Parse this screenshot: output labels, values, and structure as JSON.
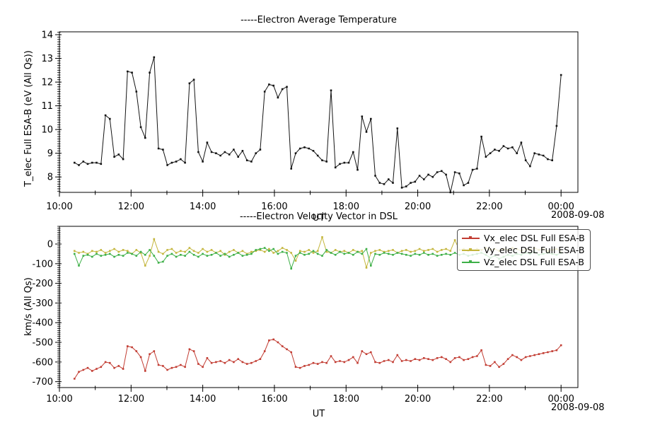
{
  "date_label": "2008-09-08",
  "colors": {
    "axis": "#000000",
    "temperature": "#141414",
    "vx": "#c23d33",
    "vy": "#c4b63d",
    "vz": "#3eb048"
  },
  "chart_data": [
    {
      "type": "line",
      "title": "-----Electron Average Temperature",
      "xlabel": "UT",
      "ylabel": "T_elec Full ESA-B (eV (All Qs))",
      "date": "2008-09-08",
      "xlim_hours": [
        10.0,
        24.47
      ],
      "ylim": [
        7.35,
        14.12
      ],
      "yticks": [
        8,
        9,
        10,
        11,
        12,
        13,
        14
      ],
      "y_minor_step": 0.1,
      "xticks_hours": [
        10,
        12,
        14,
        16,
        18,
        20,
        22,
        24
      ],
      "xtick_labels": [
        "10:00",
        "12:00",
        "14:00",
        "16:00",
        "18:00",
        "20:00",
        "22:00",
        "00:00"
      ],
      "x_minor_hours": [
        11,
        13,
        15,
        17,
        19,
        21,
        23
      ],
      "grid": false,
      "legend": null,
      "x_start_hour": 10.42,
      "x_end_hour": 24.0,
      "series": [
        {
          "name": "T_elec Full ESA-B",
          "color": "#141414",
          "marker": "square",
          "values": [
            8.6,
            8.5,
            8.65,
            8.55,
            8.6,
            8.6,
            8.55,
            10.6,
            10.45,
            8.85,
            8.95,
            8.75,
            12.45,
            12.4,
            11.6,
            10.1,
            9.65,
            12.4,
            13.05,
            9.2,
            9.15,
            8.5,
            8.6,
            8.65,
            8.75,
            8.6,
            11.95,
            12.1,
            9.05,
            8.65,
            9.45,
            9.05,
            9.0,
            8.9,
            9.05,
            8.95,
            9.15,
            8.85,
            9.1,
            8.7,
            8.65,
            9.0,
            9.15,
            11.6,
            11.9,
            11.85,
            11.35,
            11.7,
            11.8,
            8.35,
            9.0,
            9.2,
            9.25,
            9.2,
            9.1,
            8.9,
            8.7,
            8.65,
            11.65,
            8.4,
            8.55,
            8.6,
            8.6,
            9.05,
            8.3,
            10.55,
            9.9,
            10.45,
            8.05,
            7.75,
            7.7,
            7.9,
            7.75,
            10.05,
            7.55,
            7.6,
            7.75,
            7.8,
            8.05,
            7.9,
            8.1,
            8.0,
            8.2,
            8.25,
            8.1,
            7.35,
            8.2,
            8.15,
            7.65,
            7.75,
            8.3,
            8.35,
            9.7,
            8.85,
            9.0,
            9.15,
            9.1,
            9.3,
            9.2,
            9.25,
            9.0,
            9.45,
            8.7,
            8.45,
            9.0,
            8.95,
            8.9,
            8.75,
            8.7,
            10.15,
            12.3
          ]
        }
      ]
    },
    {
      "type": "line",
      "title": "-----Electron Velocity Vector in DSL",
      "xlabel": "UT",
      "ylabel": "km/s (All Qs)",
      "date": "2008-09-08",
      "xlim_hours": [
        10.0,
        24.47
      ],
      "ylim": [
        -730,
        90
      ],
      "yticks": [
        0,
        -100,
        -200,
        -300,
        -400,
        -500,
        -600,
        -700
      ],
      "y_minor_step": 10,
      "xticks_hours": [
        10,
        12,
        14,
        16,
        18,
        20,
        22,
        24
      ],
      "xtick_labels": [
        "10:00",
        "12:00",
        "14:00",
        "16:00",
        "18:00",
        "20:00",
        "22:00",
        "00:00"
      ],
      "x_minor_hours": [
        11,
        13,
        15,
        17,
        19,
        21,
        23
      ],
      "grid": false,
      "legend": {
        "position": "upper-right"
      },
      "x_start_hour": 10.42,
      "x_end_hour": 24.0,
      "series": [
        {
          "name": "Vx_elec DSL Full ESA-B",
          "color": "#c23d33",
          "marker": "square",
          "values": [
            -685,
            -650,
            -640,
            -630,
            -645,
            -635,
            -625,
            -600,
            -605,
            -630,
            -620,
            -635,
            -520,
            -525,
            -545,
            -575,
            -645,
            -560,
            -545,
            -615,
            -620,
            -640,
            -630,
            -625,
            -615,
            -625,
            -535,
            -545,
            -610,
            -625,
            -580,
            -605,
            -600,
            -595,
            -605,
            -590,
            -600,
            -585,
            -600,
            -610,
            -605,
            -595,
            -585,
            -545,
            -490,
            -485,
            -500,
            -520,
            -535,
            -550,
            -625,
            -630,
            -620,
            -615,
            -605,
            -610,
            -600,
            -605,
            -570,
            -600,
            -595,
            -600,
            -590,
            -575,
            -605,
            -545,
            -560,
            -550,
            -600,
            -605,
            -595,
            -590,
            -600,
            -565,
            -595,
            -590,
            -595,
            -585,
            -590,
            -580,
            -585,
            -590,
            -580,
            -575,
            -585,
            -600,
            -580,
            -575,
            -590,
            -585,
            -575,
            -570,
            -540,
            -615,
            -620,
            -600,
            -625,
            -610,
            -585,
            -565,
            -575,
            -590,
            -575,
            -570,
            -565,
            -560,
            -555,
            -550,
            -545,
            -540,
            -515
          ]
        },
        {
          "name": "Vy_elec DSL Full ESA-B",
          "color": "#c4b63d",
          "marker": "square",
          "values": [
            -35,
            -45,
            -40,
            -50,
            -35,
            -40,
            -30,
            -45,
            -35,
            -25,
            -40,
            -30,
            -35,
            -50,
            -30,
            -45,
            -110,
            -60,
            25,
            -40,
            -50,
            -30,
            -25,
            -45,
            -35,
            -40,
            -20,
            -35,
            -45,
            -25,
            -40,
            -30,
            -45,
            -35,
            -55,
            -40,
            -30,
            -45,
            -35,
            -50,
            -40,
            -35,
            -30,
            -40,
            -25,
            -45,
            -35,
            -20,
            -30,
            -45,
            -85,
            -35,
            -40,
            -30,
            -45,
            -35,
            35,
            -40,
            -45,
            -30,
            -40,
            -35,
            -45,
            -30,
            -40,
            -35,
            -120,
            -45,
            -35,
            -30,
            -40,
            -35,
            -30,
            -45,
            -35,
            -30,
            -40,
            -35,
            -25,
            -35,
            -30,
            -25,
            -40,
            -30,
            -25,
            -35,
            20,
            -30,
            -25,
            -35,
            -30,
            -25,
            -30,
            -20,
            -30,
            -25,
            -35,
            -25,
            -30,
            -20,
            -25,
            -35,
            -25,
            -30,
            -20,
            -30,
            -25,
            -35,
            -30,
            -25,
            -40
          ]
        },
        {
          "name": "Vz_elec DSL Full ESA-B",
          "color": "#3eb048",
          "marker": "square",
          "values": [
            -50,
            -110,
            -60,
            -55,
            -65,
            -50,
            -60,
            -55,
            -50,
            -65,
            -55,
            -60,
            -45,
            -50,
            -60,
            -40,
            -55,
            -30,
            -60,
            -95,
            -90,
            -60,
            -50,
            -65,
            -55,
            -60,
            -40,
            -55,
            -65,
            -50,
            -60,
            -55,
            -45,
            -60,
            -50,
            -65,
            -55,
            -45,
            -60,
            -55,
            -50,
            -30,
            -25,
            -20,
            -35,
            -25,
            -50,
            -40,
            -45,
            -125,
            -60,
            -45,
            -55,
            -50,
            -35,
            -50,
            -60,
            -30,
            -45,
            -55,
            -40,
            -50,
            -45,
            -55,
            -40,
            -50,
            -25,
            -110,
            -50,
            -55,
            -45,
            -50,
            -55,
            -45,
            -50,
            -55,
            -60,
            -50,
            -55,
            -45,
            -55,
            -50,
            -60,
            -55,
            -50,
            -55,
            -45,
            -55,
            -50,
            -60,
            -55,
            -50,
            -45,
            -55,
            -70,
            -60,
            -75,
            -65,
            -55,
            -60,
            -50,
            -55,
            -45,
            -50,
            -40,
            -55,
            -50,
            -45,
            -50,
            -55,
            -45
          ]
        }
      ]
    }
  ]
}
